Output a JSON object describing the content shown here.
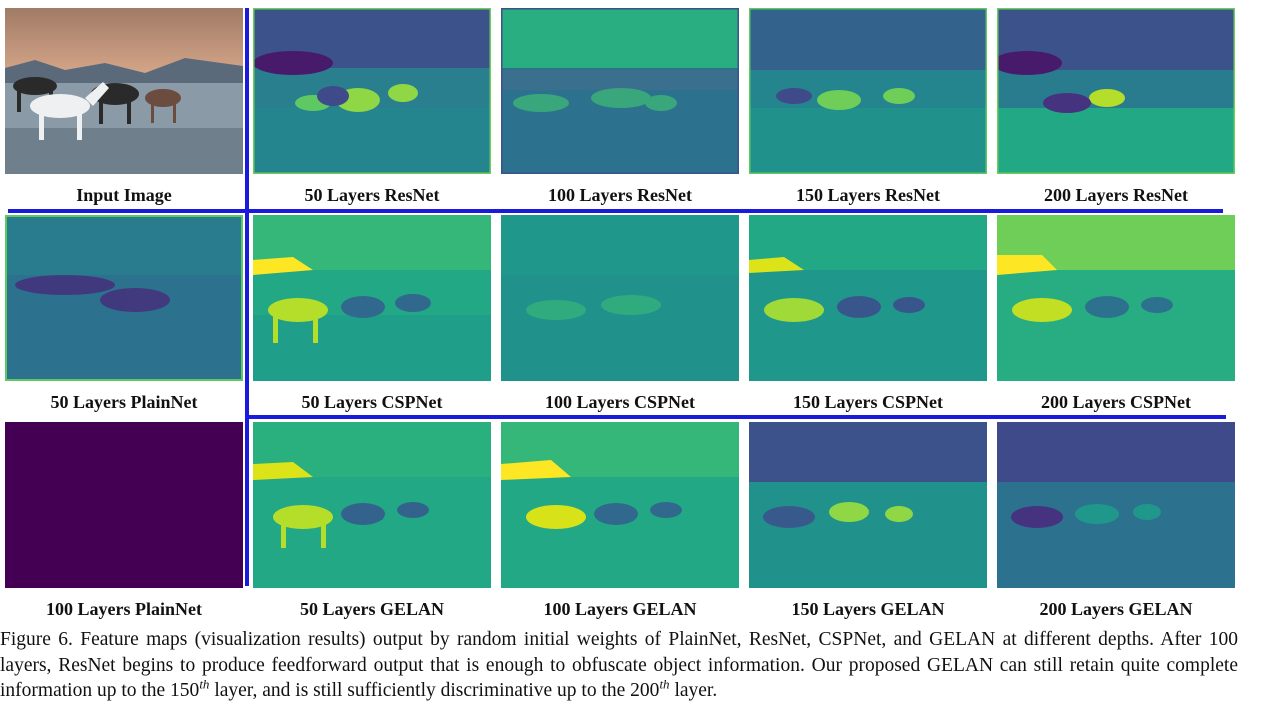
{
  "figure": {
    "colors": {
      "viridis_dark": "#440154",
      "viridis_mid": "#21908d",
      "viridis_bright": "#bddf26",
      "divider": "#1a1adc"
    },
    "rows": [
      [
        "Input Image",
        "50 Layers ResNet",
        "100 Layers ResNet",
        "150 Layers ResNet",
        "200 Layers ResNet"
      ],
      [
        "50 Layers PlainNet",
        "50 Layers CSPNet",
        "100 Layers CSPNet",
        "150 Layers CSPNet",
        "200 Layers CSPNet"
      ],
      [
        "100 Layers PlainNet",
        "50 Layers GELAN",
        "100 Layers GELAN",
        "150 Layers GELAN",
        "200 Layers GELAN"
      ]
    ]
  },
  "caption": {
    "prefix": "Figure 6.",
    "text_1": "Feature maps (visualization results) output by random initial weights of PlainNet, ResNet, CSPNet, and GELAN at different depths.  After 100 layers, ResNet begins to produce feedforward output that is enough to obfuscate object information.  Our proposed GELAN can still retain quite complete information up to the 150",
    "sup_1": "th",
    "text_2": "layer, and is still sufficiently discriminative up to the 200",
    "sup_2": "th",
    "text_3": "layer."
  }
}
